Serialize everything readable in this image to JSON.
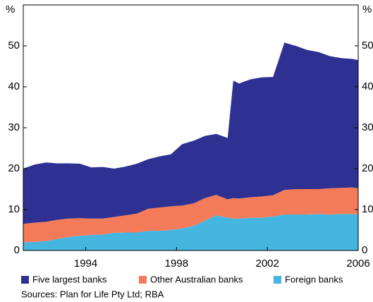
{
  "chart_data": {
    "type": "stacked_area",
    "y_unit": "%",
    "y2_unit": "%",
    "x": [
      1991.25,
      1991.75,
      1992.25,
      1992.75,
      1993.25,
      1993.75,
      1994.25,
      1994.75,
      1995.25,
      1995.75,
      1996.25,
      1996.75,
      1997.25,
      1997.75,
      1998.25,
      1998.75,
      1999.25,
      1999.75,
      2000.25,
      2000.5,
      2000.75,
      2001.25,
      2001.75,
      2002.25,
      2002.75,
      2003.25,
      2003.75,
      2004.25,
      2004.75,
      2005.25,
      2005.75,
      2006.0
    ],
    "series": [
      {
        "name": "Foreign banks",
        "color": "#45b6e0",
        "values": [
          2,
          2.1,
          2.3,
          2.8,
          3.3,
          3.6,
          3.8,
          3.9,
          4.3,
          4.4,
          4.4,
          4.8,
          4.8,
          5.0,
          5.4,
          6.0,
          7.3,
          8.6,
          8.0,
          7.8,
          7.8,
          8.0,
          8.0,
          8.3,
          8.8,
          8.8,
          8.8,
          8.9,
          8.8,
          8.9,
          8.9,
          8.8
        ]
      },
      {
        "name": "Other Australian banks",
        "color": "#f47b59",
        "values": [
          4.5,
          4.7,
          4.7,
          4.7,
          4.5,
          4.3,
          4.0,
          3.9,
          3.9,
          4.2,
          4.6,
          5.4,
          5.7,
          5.8,
          5.6,
          5.5,
          5.5,
          5.0,
          4.5,
          5.0,
          4.9,
          5.0,
          5.2,
          5.2,
          6.0,
          6.2,
          6.2,
          6.1,
          6.4,
          6.4,
          6.5,
          6.4
        ]
      },
      {
        "name": "Five largest banks",
        "color": "#2e3192",
        "values": [
          13.5,
          14.2,
          14.5,
          13.8,
          13.5,
          13.3,
          12.5,
          12.6,
          11.8,
          11.9,
          12.2,
          12.1,
          12.5,
          12.7,
          15.0,
          15.3,
          15.2,
          14.9,
          15.0,
          28.7,
          28.1,
          28.8,
          29.1,
          28.9,
          36.0,
          35.0,
          34.0,
          33.5,
          32.3,
          31.7,
          31.4,
          31.3
        ]
      }
    ],
    "legend_order": [
      2,
      1,
      0
    ],
    "xlim": [
      1991.25,
      2006
    ],
    "xticks": [
      1994,
      1998,
      2002,
      2006
    ],
    "ylim": [
      0,
      60
    ],
    "yticks": [
      0,
      10,
      20,
      30,
      40,
      50
    ],
    "y2lim": [
      0,
      60
    ],
    "y2ticks": [
      0,
      10,
      20,
      30,
      40,
      50
    ],
    "source": "Sources: Plan for Life Pty Ltd; RBA"
  }
}
